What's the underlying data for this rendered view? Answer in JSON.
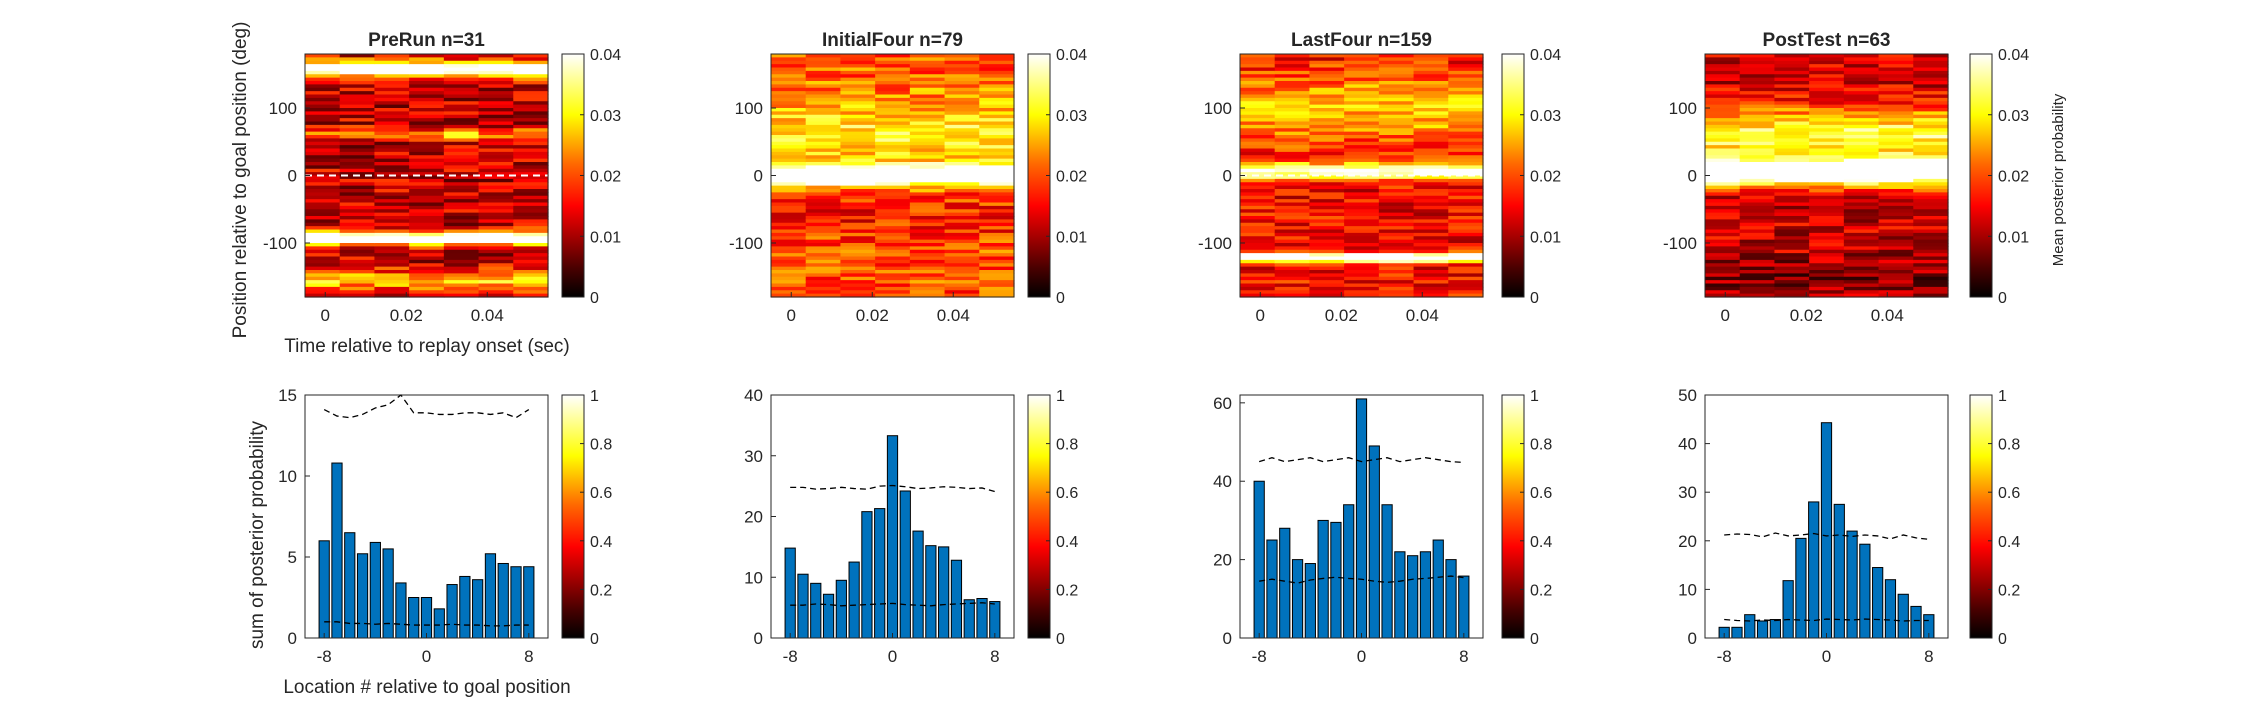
{
  "figure": {
    "top_ylabel": "Position relative to goal position (deg)",
    "top_xlabel": "Time relative to replay onset (sec)",
    "bottom_ylabel": "sum of posterior probability",
    "bottom_xlabel": "Location # relative to goal position",
    "colorbar_top_label": "Mean posterior probability",
    "colormap": "hot",
    "colors": {
      "bar_fill": "#0072BD",
      "bar_edge": "#000000",
      "dashed_line": "#000000",
      "ref_line": "#ffffff",
      "axis": "#262626"
    }
  },
  "chart_data": [
    {
      "type": "heatmap",
      "panel": "top-1",
      "title": "PreRun n=31",
      "xlim": [
        -0.005,
        0.055
      ],
      "ylim": [
        -180,
        180
      ],
      "x_ticks": [
        0,
        0.02,
        0.04
      ],
      "x_tick_labels": [
        "0",
        "0.02",
        "0.04"
      ],
      "y_ticks": [
        -100,
        0,
        100
      ],
      "y_tick_labels": [
        "-100",
        "0",
        "100"
      ],
      "colorbar": {
        "range": [
          0,
          0.04
        ],
        "ticks": [
          "0",
          "0.01",
          "0.02",
          "0.03",
          "0.04"
        ]
      },
      "reference_line_y": 0,
      "reference_line_color": "#ffffff",
      "time_bins": 7,
      "description_values": "bright bands near +160 deg and -95 deg; dark elsewhere"
    },
    {
      "type": "heatmap",
      "panel": "top-2",
      "title": "InitialFour n=79",
      "xlim": [
        -0.005,
        0.055
      ],
      "ylim": [
        -180,
        180
      ],
      "x_ticks": [
        0,
        0.02,
        0.04
      ],
      "x_tick_labels": [
        "0",
        "0.02",
        "0.04"
      ],
      "y_ticks": [
        -100,
        0,
        100
      ],
      "y_tick_labels": [
        "-100",
        "0",
        "100"
      ],
      "colorbar": {
        "range": [
          0,
          0.04
        ],
        "ticks": [
          "0",
          "0.01",
          "0.02",
          "0.03",
          "0.04"
        ]
      },
      "reference_line_y": 0,
      "reference_line_color": "#ffffff",
      "time_bins": 7
    },
    {
      "type": "heatmap",
      "panel": "top-3",
      "title": "LastFour n=159",
      "xlim": [
        -0.005,
        0.055
      ],
      "ylim": [
        -180,
        180
      ],
      "x_ticks": [
        0,
        0.02,
        0.04
      ],
      "x_tick_labels": [
        "0",
        "0.02",
        "0.04"
      ],
      "y_ticks": [
        -100,
        0,
        100
      ],
      "y_tick_labels": [
        "-100",
        "0",
        "100"
      ],
      "colorbar": {
        "range": [
          0,
          0.04
        ],
        "ticks": [
          "0",
          "0.01",
          "0.02",
          "0.03",
          "0.04"
        ]
      },
      "reference_line_y": 0,
      "reference_line_color": "#ffffff",
      "time_bins": 7
    },
    {
      "type": "heatmap",
      "panel": "top-4",
      "title": "PostTest n=63",
      "xlim": [
        -0.005,
        0.055
      ],
      "ylim": [
        -180,
        180
      ],
      "x_ticks": [
        0,
        0.02,
        0.04
      ],
      "x_tick_labels": [
        "0",
        "0.02",
        "0.04"
      ],
      "y_ticks": [
        -100,
        0,
        100
      ],
      "y_tick_labels": [
        "-100",
        "0",
        "100"
      ],
      "colorbar": {
        "range": [
          0,
          0.04
        ],
        "ticks": [
          "0",
          "0.01",
          "0.02",
          "0.03",
          "0.04"
        ],
        "label": "Mean posterior probability"
      },
      "reference_line_y": null,
      "time_bins": 7
    },
    {
      "type": "bar",
      "panel": "bottom-1",
      "x": [
        -8,
        -7,
        -6,
        -5,
        -4,
        -3,
        -2,
        -1,
        0,
        1,
        2,
        3,
        4,
        5,
        6,
        7,
        8
      ],
      "values": [
        6.0,
        10.8,
        6.5,
        5.2,
        5.9,
        5.5,
        3.4,
        2.5,
        2.5,
        1.8,
        3.3,
        3.8,
        3.6,
        5.2,
        4.6,
        4.4,
        4.4
      ],
      "upper_dashed": [
        14.1,
        13.7,
        13.6,
        13.8,
        14.2,
        14.4,
        15.0,
        13.9,
        13.9,
        13.8,
        13.8,
        13.9,
        13.9,
        13.8,
        13.9,
        13.6,
        14.1
      ],
      "lower_dashed": [
        1.0,
        1.0,
        0.9,
        0.9,
        0.85,
        0.9,
        0.85,
        0.8,
        0.8,
        0.8,
        0.85,
        0.8,
        0.8,
        0.75,
        0.75,
        0.8,
        0.8
      ],
      "xlim": [
        -9.5,
        9.5
      ],
      "ylim": [
        0,
        15
      ],
      "x_ticks": [
        -8,
        0,
        8
      ],
      "x_tick_labels": [
        "-8",
        "0",
        "8"
      ],
      "y_ticks": [
        0,
        5,
        10,
        15
      ],
      "y_tick_labels": [
        "0",
        "5",
        "10",
        "15"
      ],
      "colorbar": {
        "range": [
          0,
          1
        ],
        "ticks": [
          "0",
          "0.2",
          "0.4",
          "0.6",
          "0.8",
          "1"
        ]
      }
    },
    {
      "type": "bar",
      "panel": "bottom-2",
      "x": [
        -8,
        -7,
        -6,
        -5,
        -4,
        -3,
        -2,
        -1,
        0,
        1,
        2,
        3,
        4,
        5,
        6,
        7,
        8
      ],
      "values": [
        14.8,
        10.5,
        9.0,
        7.2,
        9.5,
        12.5,
        20.8,
        21.3,
        33.3,
        24.2,
        17.6,
        15.2,
        15.0,
        12.8,
        6.3,
        6.5,
        6.0
      ],
      "upper_dashed": [
        24.8,
        24.8,
        24.5,
        24.6,
        24.8,
        24.6,
        24.5,
        25.0,
        25.1,
        24.9,
        24.6,
        24.7,
        24.9,
        24.8,
        24.6,
        24.7,
        24.1
      ],
      "lower_dashed": [
        5.4,
        5.4,
        5.6,
        5.5,
        5.3,
        5.4,
        5.5,
        5.6,
        5.7,
        5.5,
        5.4,
        5.3,
        5.5,
        5.6,
        5.7,
        5.8,
        5.6
      ],
      "xlim": [
        -9.5,
        9.5
      ],
      "ylim": [
        0,
        40
      ],
      "x_ticks": [
        -8,
        0,
        8
      ],
      "x_tick_labels": [
        "-8",
        "0",
        "8"
      ],
      "y_ticks": [
        0,
        10,
        20,
        30,
        40
      ],
      "y_tick_labels": [
        "0",
        "10",
        "20",
        "30",
        "40"
      ],
      "colorbar": {
        "range": [
          0,
          1
        ],
        "ticks": [
          "0",
          "0.2",
          "0.4",
          "0.6",
          "0.8",
          "1"
        ]
      }
    },
    {
      "type": "bar",
      "panel": "bottom-3",
      "x": [
        -8,
        -7,
        -6,
        -5,
        -4,
        -3,
        -2,
        -1,
        0,
        1,
        2,
        3,
        4,
        5,
        6,
        7,
        8
      ],
      "values": [
        40.0,
        25.0,
        28.0,
        20.0,
        19.0,
        30.0,
        29.5,
        34.0,
        61.0,
        49.0,
        34.0,
        22.0,
        21.0,
        22.0,
        25.0,
        20.0,
        15.8
      ],
      "upper_dashed": [
        45.0,
        46.0,
        45.0,
        45.5,
        46.0,
        45.0,
        45.5,
        46.0,
        45.0,
        45.5,
        46.0,
        45.0,
        45.5,
        46.0,
        45.5,
        45.0,
        44.8
      ],
      "lower_dashed": [
        14.5,
        15.0,
        14.5,
        14.0,
        14.8,
        15.2,
        15.5,
        15.2,
        15.0,
        14.5,
        14.2,
        14.5,
        15.0,
        15.2,
        15.5,
        15.8,
        15.4
      ],
      "xlim": [
        -9.5,
        9.5
      ],
      "ylim": [
        0,
        62
      ],
      "x_ticks": [
        -8,
        0,
        8
      ],
      "x_tick_labels": [
        "-8",
        "0",
        "8"
      ],
      "y_ticks": [
        0,
        20,
        40,
        60
      ],
      "y_tick_labels": [
        "0",
        "20",
        "40",
        "60"
      ],
      "colorbar": {
        "range": [
          0,
          1
        ],
        "ticks": [
          "0",
          "0.2",
          "0.4",
          "0.6",
          "0.8",
          "1"
        ]
      }
    },
    {
      "type": "bar",
      "panel": "bottom-4",
      "x": [
        -8,
        -7,
        -6,
        -5,
        -4,
        -3,
        -2,
        -1,
        0,
        1,
        2,
        3,
        4,
        5,
        6,
        7,
        8
      ],
      "values": [
        2.2,
        2.2,
        4.8,
        3.5,
        3.8,
        11.8,
        20.5,
        28.0,
        44.3,
        27.5,
        22.0,
        19.3,
        14.5,
        12.0,
        9.0,
        6.5,
        4.8
      ],
      "upper_dashed": [
        21.2,
        21.4,
        21.3,
        20.8,
        21.6,
        21.0,
        21.2,
        21.5,
        21.0,
        21.2,
        20.9,
        21.2,
        21.0,
        20.4,
        21.2,
        20.6,
        20.3
      ],
      "lower_dashed": [
        3.8,
        3.6,
        3.5,
        3.7,
        3.6,
        3.8,
        3.7,
        3.6,
        3.9,
        3.8,
        3.7,
        3.9,
        3.8,
        3.7,
        3.5,
        3.6,
        3.6
      ],
      "xlim": [
        -9.5,
        9.5
      ],
      "ylim": [
        0,
        50
      ],
      "x_ticks": [
        -8,
        0,
        8
      ],
      "x_tick_labels": [
        "-8",
        "0",
        "8"
      ],
      "y_ticks": [
        0,
        10,
        20,
        30,
        40,
        50
      ],
      "y_tick_labels": [
        "0",
        "10",
        "20",
        "30",
        "40",
        "50"
      ],
      "colorbar": {
        "range": [
          0,
          1
        ],
        "ticks": [
          "0",
          "0.2",
          "0.4",
          "0.6",
          "0.8",
          "1"
        ]
      }
    }
  ]
}
